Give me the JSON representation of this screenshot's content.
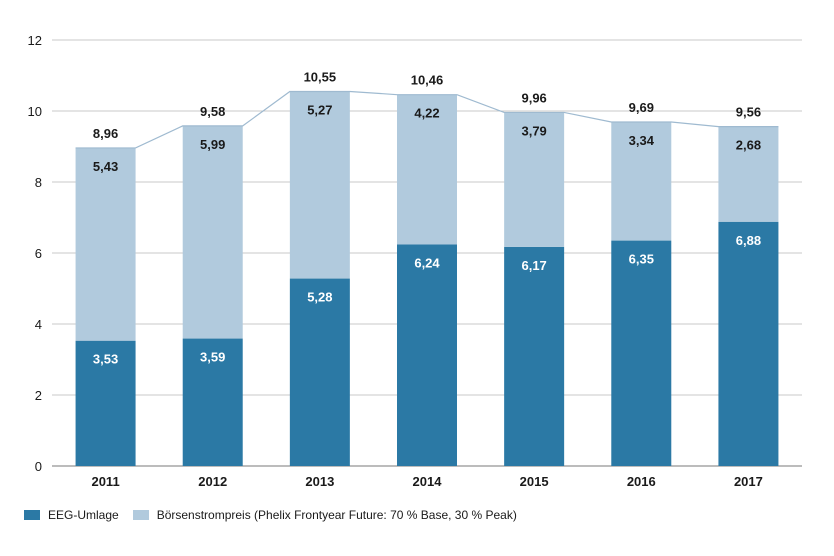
{
  "chart_data": {
    "type": "bar",
    "stacked": true,
    "categories": [
      "2011",
      "2012",
      "2013",
      "2014",
      "2015",
      "2016",
      "2017"
    ],
    "series": [
      {
        "name": "EEG-Umlage",
        "color": "#2b79a5",
        "label_color": "#ffffff",
        "values": [
          3.53,
          3.59,
          5.28,
          6.24,
          6.17,
          6.35,
          6.88
        ],
        "labels": [
          "3,53",
          "3,59",
          "5,28",
          "6,24",
          "6,17",
          "6,35",
          "6,88"
        ]
      },
      {
        "name": "Börsenstrompreis (Phelix Frontyear Future: 70 % Base, 30 % Peak)",
        "color": "#b1cadd",
        "label_color": "#1a1a1a",
        "values": [
          5.43,
          5.99,
          5.27,
          4.22,
          3.79,
          3.34,
          2.68
        ],
        "labels": [
          "5,43",
          "5,99",
          "5,27",
          "4,22",
          "3,79",
          "3,34",
          "2,68"
        ]
      }
    ],
    "totals": [
      8.96,
      9.58,
      10.55,
      10.46,
      9.96,
      9.69,
      9.56
    ],
    "total_labels": [
      "8,96",
      "9,58",
      "10,55",
      "10,46",
      "9,96",
      "9,69",
      "9,56"
    ],
    "ylim": [
      0,
      12
    ],
    "yticks": [
      "0",
      "2",
      "4",
      "6",
      "8",
      "10",
      "12"
    ],
    "grid": true,
    "total_line": true,
    "legend_position": "bottom-left",
    "title": "",
    "xlabel": "",
    "ylabel": ""
  }
}
